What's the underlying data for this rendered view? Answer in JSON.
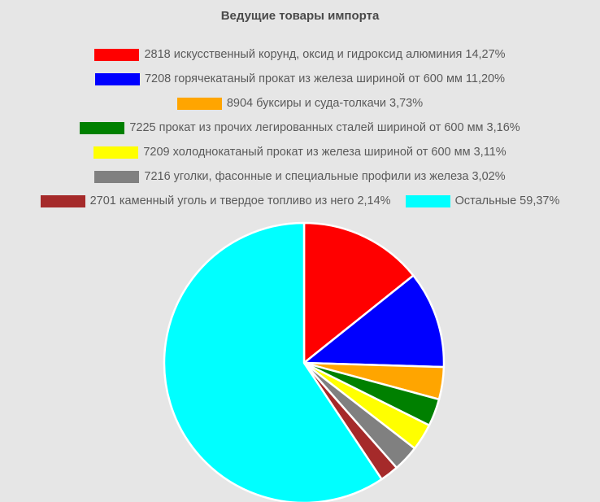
{
  "chart_data": {
    "type": "pie",
    "title": "Ведущие товары импорта",
    "slices": [
      {
        "label": "2818 искусственный корунд, оксид и гидроксид алюминия 14,27%",
        "value": 14.27,
        "color": "#ff0000"
      },
      {
        "label": "7208 горячекатаный прокат из железа шириной от 600 мм 11,20%",
        "value": 11.2,
        "color": "#0000ff"
      },
      {
        "label": "8904 буксиры и суда-толкачи 3,73%",
        "value": 3.73,
        "color": "#ffa500"
      },
      {
        "label": "7225 прокат из прочих легированных сталей шириной от 600 мм 3,16%",
        "value": 3.16,
        "color": "#008000"
      },
      {
        "label": "7209 холоднокатаный прокат из железа шириной от 600 мм 3,11%",
        "value": 3.11,
        "color": "#ffff00"
      },
      {
        "label": "7216 уголки, фасонные и специальные профили из железа 3,02%",
        "value": 3.02,
        "color": "#808080"
      },
      {
        "label": "2701 каменный уголь и твердое топливо из него 2,14%",
        "value": 2.14,
        "color": "#a52a2a"
      },
      {
        "label": "Остальные 59,37%",
        "value": 59.37,
        "color": "#00ffff"
      }
    ],
    "legend_placement": "top"
  }
}
